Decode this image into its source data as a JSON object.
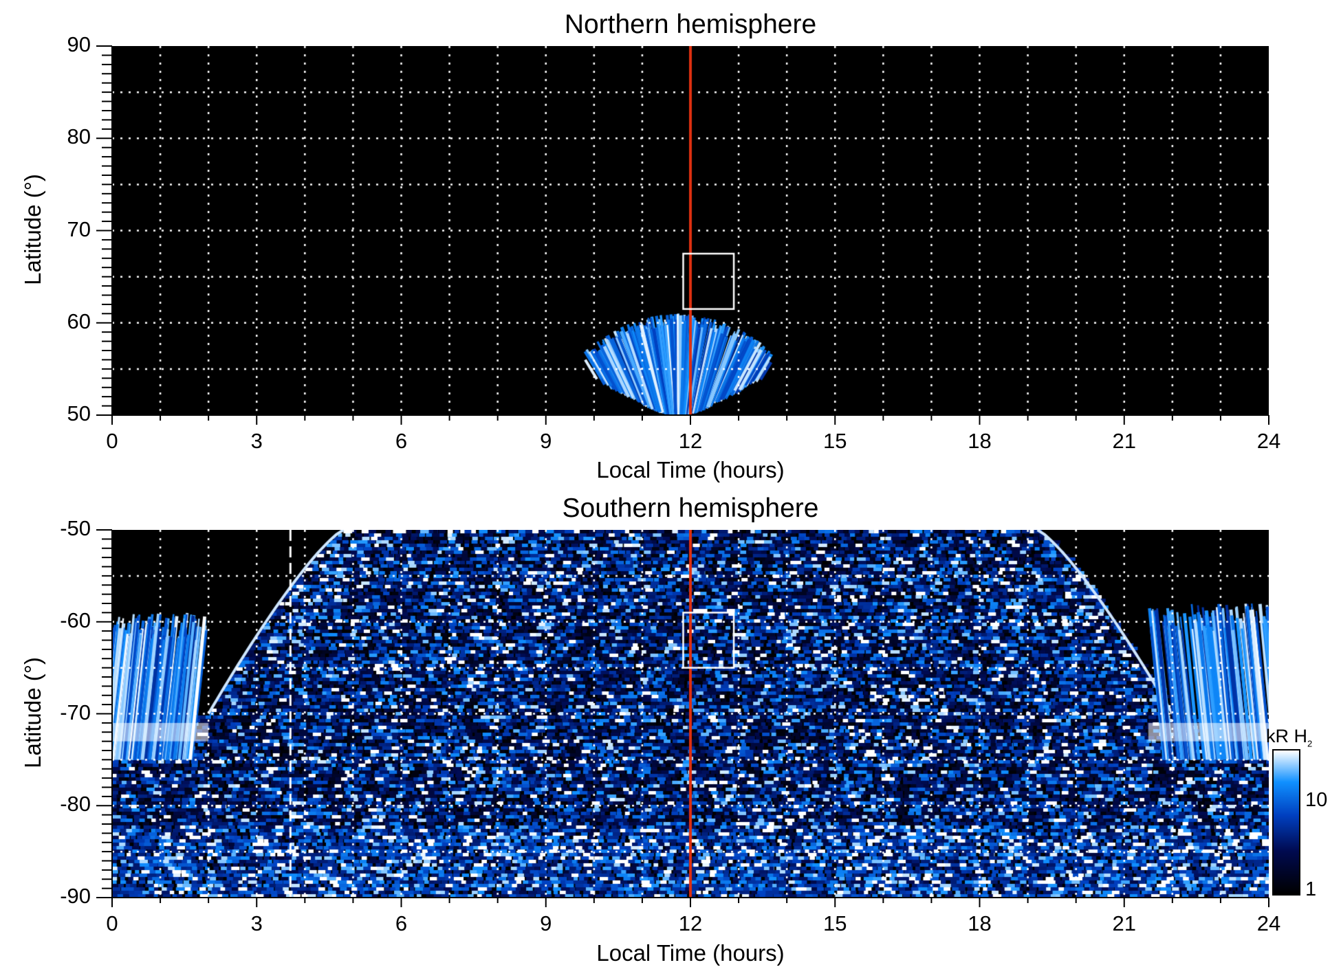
{
  "chart_data": [
    {
      "type": "heatmap",
      "title": "Northern hemisphere",
      "xlabel": "Local Time (hours)",
      "ylabel": "Latitude (°)",
      "xlim": [
        0,
        24
      ],
      "ylim": [
        50,
        90
      ],
      "xticks": [
        "0",
        "3",
        "6",
        "9",
        "12",
        "15",
        "18",
        "21",
        "24"
      ],
      "yticks": [
        "50",
        "60",
        "70",
        "80",
        "90"
      ],
      "grid": "dotted, 1 h and 5°",
      "annotations": {
        "red_line_lt": 12,
        "box": {
          "lt": [
            11.85,
            12.9
          ],
          "lat": [
            61.5,
            67.5
          ]
        }
      },
      "emission_region": {
        "lt": [
          9.8,
          13.7
        ],
        "lat": [
          50,
          61
        ]
      }
    },
    {
      "type": "heatmap",
      "title": "Southern hemisphere",
      "xlabel": "Local Time (hours)",
      "ylabel": "Latitude (°)",
      "xlim": [
        0,
        24
      ],
      "ylim": [
        -90,
        -50
      ],
      "xticks": [
        "0",
        "3",
        "6",
        "9",
        "12",
        "15",
        "18",
        "21",
        "24"
      ],
      "yticks": [
        "-90",
        "-80",
        "-70",
        "-60",
        "-50"
      ],
      "grid": "dotted, 1 h and 5°",
      "annotations": {
        "red_line_lt": 12,
        "dashed_line_lt": 3.7,
        "box": {
          "lt": [
            11.85,
            12.9
          ],
          "lat": [
            -65,
            -59
          ]
        }
      },
      "auroral_arcs": [
        {
          "lt": [
            0,
            2
          ],
          "lat": [
            -75,
            -59
          ]
        },
        {
          "lt": [
            21.5,
            24
          ],
          "lat": [
            -75,
            -58
          ]
        }
      ],
      "colorbar": {
        "label": "kR H",
        "label_sub": "2",
        "scale": "log",
        "range": [
          1,
          25
        ],
        "ticks": [
          "1",
          "10"
        ]
      }
    }
  ],
  "colors": {
    "accent_line": "#e03010",
    "cmap": [
      "#000000",
      "#000a50",
      "#0040c0",
      "#1090ff",
      "#ffffff"
    ]
  }
}
